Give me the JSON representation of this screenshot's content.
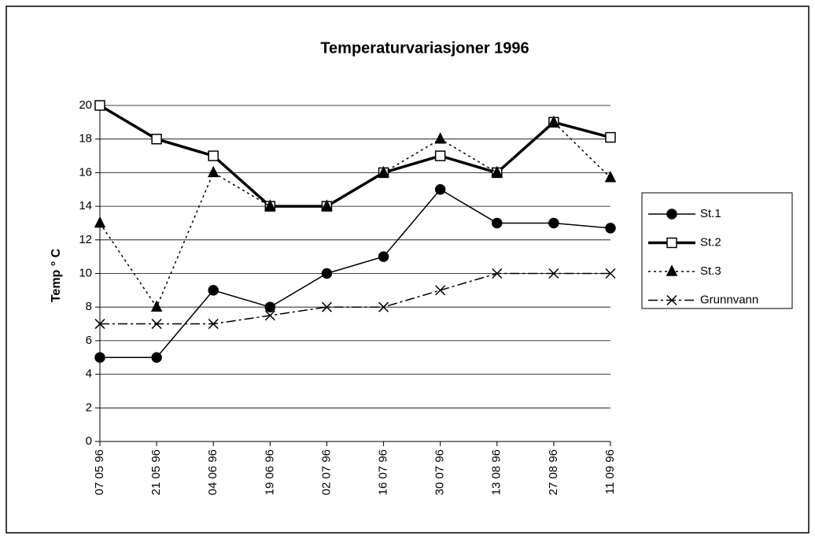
{
  "chart_data": {
    "type": "line",
    "title": "Temperaturvariasjoner 1996",
    "y_label": "Temp ° C",
    "categories": [
      "07 05 96",
      "21 05 96",
      "04 06 96",
      "19 06 96",
      "02 07 96",
      "16 07 96",
      "30 07 96",
      "13 08 96",
      "27 08 96",
      "11 09 96"
    ],
    "series": [
      {
        "name": "St.1",
        "color": "#000000",
        "marker": "circle",
        "dash": "solid",
        "width": 1.5,
        "values": [
          5,
          5,
          9,
          8,
          10,
          11,
          15,
          13,
          13,
          12.7
        ]
      },
      {
        "name": "St.2",
        "color": "#000000",
        "marker": "square",
        "dash": "solid",
        "width": 3.5,
        "values": [
          20,
          18,
          17,
          14,
          14,
          16,
          17,
          16,
          19,
          18.1
        ]
      },
      {
        "name": "St.3",
        "color": "#000000",
        "marker": "triangle",
        "dash": "dotted",
        "width": 1.5,
        "values": [
          13,
          8,
          16,
          14,
          14,
          16,
          18,
          16,
          19,
          15.7
        ]
      },
      {
        "name": "Grunnvann",
        "color": "#000000",
        "marker": "x",
        "dash": "dashdot",
        "width": 1.5,
        "values": [
          7,
          7,
          7,
          7.5,
          8,
          8,
          9,
          10,
          10,
          10
        ]
      }
    ],
    "ylim": [
      0,
      20
    ],
    "yticks": [
      0,
      2,
      4,
      6,
      8,
      10,
      12,
      14,
      16,
      18,
      20
    ],
    "grid": true,
    "legend": "right"
  }
}
